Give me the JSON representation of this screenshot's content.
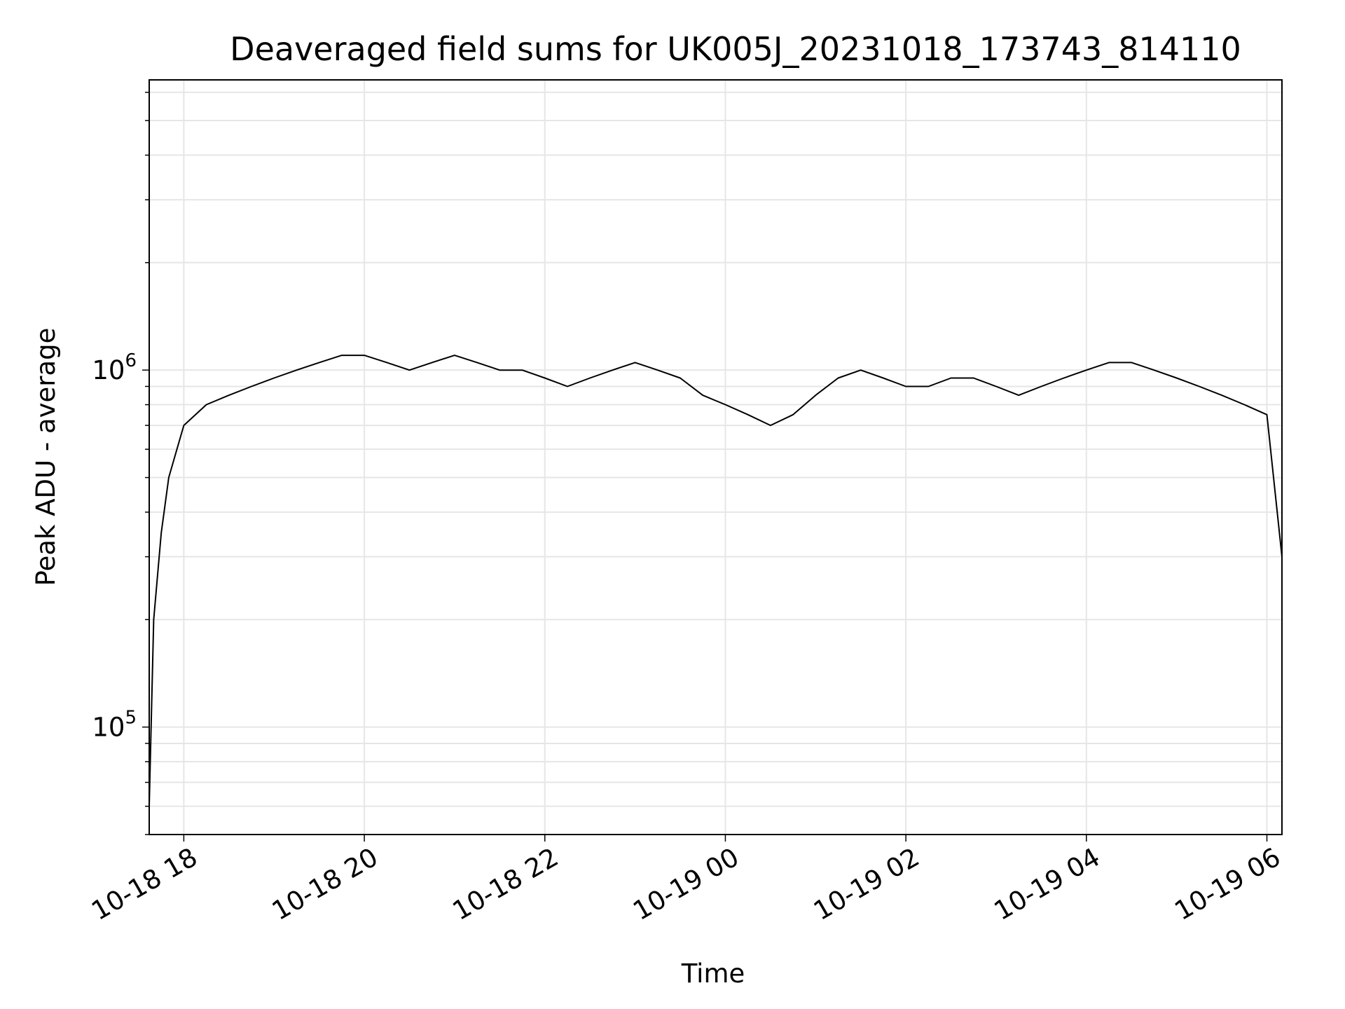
{
  "chart_data": {
    "type": "line",
    "title": "Deaveraged field sums for UK005J_20231018_173743_814110",
    "xlabel": "Time",
    "ylabel": "Peak ADU - average",
    "x_range": [
      "2023-10-18 17:37",
      "2023-10-19 06:10"
    ],
    "x_ticks": [
      "10-18 18",
      "10-18 20",
      "10-18 22",
      "10-19 00",
      "10-19 02",
      "10-19 04",
      "10-19 06"
    ],
    "y_scale": "log",
    "ylim": [
      50000,
      6500000
    ],
    "y_tick_labels": [
      {
        "base": "10",
        "exp": "5",
        "value": 100000
      },
      {
        "base": "10",
        "exp": "6",
        "value": 1000000
      }
    ],
    "grid": true,
    "line_color": "#000000",
    "grid_color": "#e6e6e6",
    "series": [
      {
        "x": [
          "2023-10-18 17:37",
          "2023-10-18 17:40",
          "2023-10-18 17:45",
          "2023-10-18 17:50",
          "2023-10-18 18:00",
          "2023-10-18 18:15",
          "2023-10-18 18:30",
          "2023-10-18 18:45",
          "2023-10-18 19:00",
          "2023-10-18 19:15",
          "2023-10-18 19:30",
          "2023-10-18 19:45",
          "2023-10-18 20:00",
          "2023-10-18 20:15",
          "2023-10-18 20:30",
          "2023-10-18 20:45",
          "2023-10-18 21:00",
          "2023-10-18 21:15",
          "2023-10-18 21:30",
          "2023-10-18 21:45",
          "2023-10-18 22:00",
          "2023-10-18 22:15",
          "2023-10-18 22:30",
          "2023-10-18 22:45",
          "2023-10-18 23:00",
          "2023-10-18 23:15",
          "2023-10-18 23:30",
          "2023-10-18 23:45",
          "2023-10-19 00:00",
          "2023-10-19 00:15",
          "2023-10-19 00:30",
          "2023-10-19 00:45",
          "2023-10-19 01:00",
          "2023-10-19 01:15",
          "2023-10-19 01:30",
          "2023-10-19 01:45",
          "2023-10-19 02:00",
          "2023-10-19 02:15",
          "2023-10-19 02:30",
          "2023-10-19 02:45",
          "2023-10-19 03:00",
          "2023-10-19 03:15",
          "2023-10-19 03:30",
          "2023-10-19 03:45",
          "2023-10-19 04:00",
          "2023-10-19 04:15",
          "2023-10-19 04:30",
          "2023-10-19 04:45",
          "2023-10-19 05:00",
          "2023-10-19 05:15",
          "2023-10-19 05:30",
          "2023-10-19 05:45",
          "2023-10-19 06:00",
          "2023-10-19 06:10"
        ],
        "y": [
          60000,
          200000,
          350000,
          500000,
          700000,
          800000,
          850000,
          900000,
          950000,
          1000000,
          1050000,
          1100000,
          1100000,
          1050000,
          1000000,
          1050000,
          1100000,
          1050000,
          1000000,
          1000000,
          950000,
          900000,
          950000,
          1000000,
          1050000,
          1000000,
          950000,
          850000,
          800000,
          750000,
          700000,
          750000,
          850000,
          950000,
          1000000,
          950000,
          900000,
          900000,
          950000,
          950000,
          900000,
          850000,
          900000,
          950000,
          1000000,
          1050000,
          1050000,
          1000000,
          950000,
          900000,
          850000,
          800000,
          750000,
          300000
        ]
      }
    ]
  }
}
